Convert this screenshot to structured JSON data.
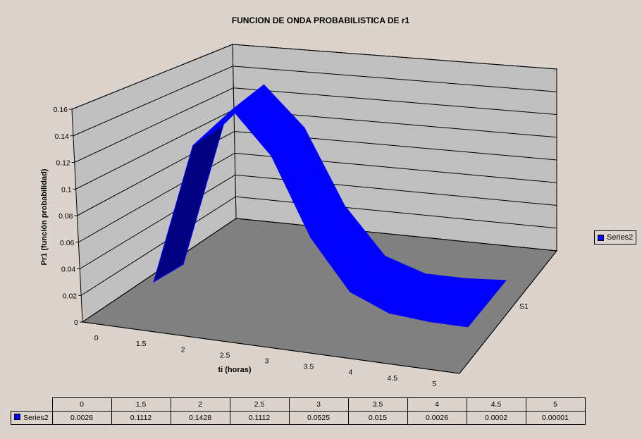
{
  "chart_data": {
    "type": "area",
    "title": "FUNCION DE ONDA PROBABILISTICA DE r1",
    "xlabel": "ti (horas)",
    "ylabel": "Pr1 (función probabilidad)",
    "depth_label": "S1",
    "categories": [
      "0",
      "1.5",
      "2",
      "2.5",
      "3",
      "3.5",
      "4",
      "4.5",
      "5"
    ],
    "y_ticks": [
      "0",
      "0.02",
      "0.04",
      "0.06",
      "0.08",
      "0.1",
      "0.12",
      "0.14",
      "0.16"
    ],
    "ylim": [
      0,
      0.16
    ],
    "series": [
      {
        "name": "Series2",
        "values": [
          0.0026,
          0.1112,
          0.1428,
          0.1112,
          0.0525,
          0.015,
          0.0026,
          0.0002,
          1e-05
        ],
        "labels": [
          "0.0026",
          "0.1112",
          "0.1428",
          "0.1112",
          "0.0525",
          "0.015",
          "0.0026",
          "0.0002",
          "0.00001"
        ]
      }
    ],
    "legend_position": "right",
    "grid": true,
    "data_table": true
  },
  "colors": {
    "series": "#0000ff",
    "series_dark": "#000080",
    "wall": "#c0c0c0",
    "floor": "#808080",
    "background": "#dcd4cc"
  }
}
